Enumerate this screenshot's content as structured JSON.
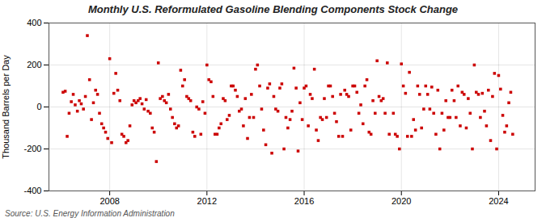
{
  "chart_data": {
    "type": "scatter",
    "title": "Monthly U.S. Reformulated Gasoline Blending Components Stock Change",
    "ylabel": "Thousand Barrels per Day",
    "source": "Source: U.S. Energy Information Administration",
    "color": "#cc0000",
    "marker": "square",
    "grid": true,
    "xlim": [
      2005.5,
      2025.5
    ],
    "xticks": [
      2008,
      2012,
      2016,
      2020,
      2024
    ],
    "ylim": [
      -400,
      400
    ],
    "yticks": [
      -400,
      -200,
      0,
      200,
      400
    ],
    "x": [
      2006.08,
      2006.17,
      2006.25,
      2006.33,
      2006.42,
      2006.5,
      2006.58,
      2006.67,
      2006.75,
      2006.83,
      2006.92,
      2007.0,
      2007.08,
      2007.17,
      2007.25,
      2007.33,
      2007.42,
      2007.5,
      2007.58,
      2007.67,
      2007.75,
      2007.83,
      2007.92,
      2008.0,
      2008.08,
      2008.17,
      2008.25,
      2008.33,
      2008.42,
      2008.5,
      2008.58,
      2008.67,
      2008.75,
      2008.83,
      2008.92,
      2009.0,
      2009.08,
      2009.17,
      2009.25,
      2009.33,
      2009.42,
      2009.5,
      2009.58,
      2009.67,
      2009.75,
      2009.83,
      2009.92,
      2010.0,
      2010.08,
      2010.17,
      2010.25,
      2010.33,
      2010.42,
      2010.5,
      2010.58,
      2010.67,
      2010.75,
      2010.83,
      2010.92,
      2011.0,
      2011.08,
      2011.17,
      2011.25,
      2011.33,
      2011.42,
      2011.5,
      2011.58,
      2011.67,
      2011.75,
      2011.83,
      2011.92,
      2012.0,
      2012.08,
      2012.17,
      2012.25,
      2012.33,
      2012.42,
      2012.5,
      2012.58,
      2012.67,
      2012.75,
      2012.83,
      2012.92,
      2013.0,
      2013.08,
      2013.17,
      2013.25,
      2013.33,
      2013.42,
      2013.5,
      2013.58,
      2013.67,
      2013.75,
      2013.83,
      2013.92,
      2014.0,
      2014.08,
      2014.17,
      2014.25,
      2014.33,
      2014.42,
      2014.5,
      2014.58,
      2014.67,
      2014.75,
      2014.83,
      2014.92,
      2015.0,
      2015.08,
      2015.17,
      2015.25,
      2015.33,
      2015.42,
      2015.5,
      2015.58,
      2015.67,
      2015.75,
      2015.83,
      2015.92,
      2016.0,
      2016.08,
      2016.17,
      2016.25,
      2016.33,
      2016.42,
      2016.5,
      2016.58,
      2016.67,
      2016.75,
      2016.83,
      2016.92,
      2017.0,
      2017.08,
      2017.17,
      2017.25,
      2017.33,
      2017.42,
      2017.5,
      2017.58,
      2017.67,
      2017.75,
      2017.83,
      2017.92,
      2018.0,
      2018.08,
      2018.17,
      2018.25,
      2018.33,
      2018.42,
      2018.5,
      2018.58,
      2018.67,
      2018.75,
      2018.83,
      2018.92,
      2019.0,
      2019.08,
      2019.17,
      2019.25,
      2019.33,
      2019.42,
      2019.5,
      2019.67,
      2019.75,
      2019.83,
      2019.92,
      2020.0,
      2020.08,
      2020.17,
      2020.25,
      2020.33,
      2020.42,
      2020.5,
      2020.58,
      2020.67,
      2020.75,
      2020.83,
      2020.92,
      2021.0,
      2021.08,
      2021.17,
      2021.25,
      2021.33,
      2021.42,
      2021.5,
      2021.58,
      2021.67,
      2021.75,
      2021.83,
      2021.92,
      2022.0,
      2022.08,
      2022.17,
      2022.25,
      2022.33,
      2022.42,
      2022.5,
      2022.58,
      2022.67,
      2022.75,
      2022.83,
      2022.92,
      2023.0,
      2023.08,
      2023.17,
      2023.25,
      2023.33,
      2023.42,
      2023.5,
      2023.58,
      2023.67,
      2023.75,
      2023.83,
      2023.92,
      2024.0,
      2024.08,
      2024.17,
      2024.25,
      2024.33,
      2024.42,
      2024.5,
      2024.58
    ],
    "values": [
      70,
      75,
      -140,
      -30,
      25,
      60,
      10,
      -20,
      30,
      15,
      -10,
      50,
      340,
      130,
      -60,
      20,
      80,
      60,
      -30,
      -80,
      -100,
      -120,
      -150,
      230,
      -170,
      65,
      160,
      80,
      30,
      -130,
      -140,
      -170,
      -160,
      -90,
      10,
      30,
      20,
      30,
      40,
      15,
      -10,
      35,
      -20,
      -30,
      -100,
      -120,
      -260,
      210,
      40,
      50,
      30,
      20,
      60,
      -10,
      -50,
      -80,
      -100,
      -90,
      175,
      100,
      130,
      50,
      40,
      30,
      -120,
      -140,
      0,
      -10,
      -130,
      25,
      -30,
      200,
      130,
      120,
      50,
      -130,
      -130,
      -100,
      -80,
      40,
      30,
      -60,
      -40,
      100,
      100,
      80,
      50,
      -20,
      -10,
      -90,
      40,
      -150,
      -50,
      60,
      -50,
      180,
      200,
      100,
      -10,
      -110,
      -180,
      90,
      110,
      -220,
      50,
      -10,
      -20,
      90,
      110,
      -200,
      -50,
      -100,
      -60,
      -20,
      185,
      90,
      -210,
      20,
      -60,
      90,
      100,
      -90,
      60,
      40,
      180,
      -110,
      -160,
      -50,
      -60,
      40,
      -50,
      100,
      100,
      50,
      -30,
      -70,
      -140,
      60,
      -140,
      80,
      60,
      50,
      -110,
      100,
      100,
      70,
      -30,
      10,
      -80,
      100,
      130,
      -120,
      -130,
      30,
      -30,
      220,
      50,
      30,
      40,
      -30,
      210,
      -130,
      -30,
      -130,
      -140,
      -200,
      205,
      100,
      65,
      -140,
      165,
      -140,
      -60,
      -110,
      100,
      60,
      -100,
      -10,
      100,
      60,
      -10,
      95,
      -30,
      -130,
      80,
      -200,
      -30,
      -110,
      30,
      -50,
      -50,
      80,
      30,
      -50,
      100,
      -90,
      70,
      60,
      -100,
      40,
      -30,
      -200,
      200,
      70,
      60,
      -50,
      65,
      -20,
      -90,
      80,
      -160,
      50,
      160,
      -200,
      150,
      85,
      -40,
      -120,
      -90,
      20,
      70,
      -130
    ]
  }
}
